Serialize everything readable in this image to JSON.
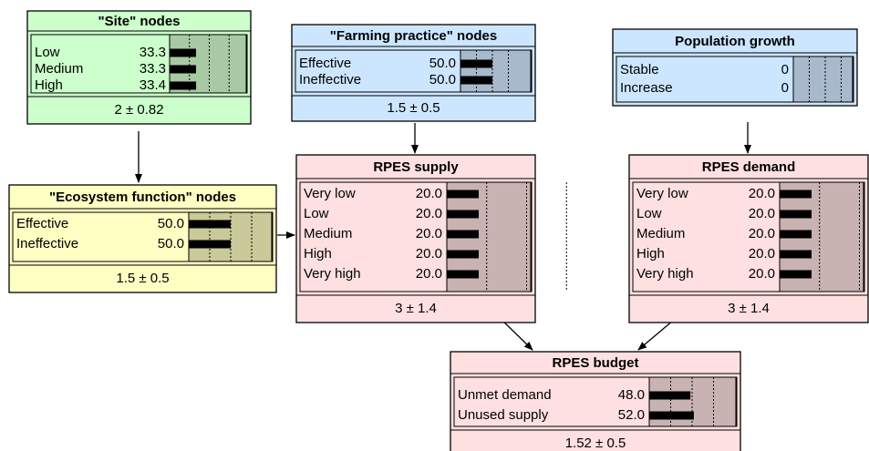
{
  "nodes": [
    {
      "title": "\"Site\" nodes",
      "states": [
        {
          "label": "Low",
          "value": 33.3,
          "value_label": "33.3"
        },
        {
          "label": "Medium",
          "value": 33.3,
          "value_label": "33.3"
        },
        {
          "label": "High",
          "value": 33.4,
          "value_label": "33.4"
        }
      ],
      "summary": "2 ± 0.82"
    },
    {
      "title": "\"Farming practice\" nodes",
      "states": [
        {
          "label": "Effective",
          "value": 50,
          "value_label": "50.0"
        },
        {
          "label": "Ineffective",
          "value": 50,
          "value_label": "50.0"
        }
      ],
      "summary": "1.5 ± 0.5"
    },
    {
      "title": "Population growth",
      "states": [
        {
          "label": "Stable",
          "value": 0,
          "value_label": "0"
        },
        {
          "label": "Increase",
          "value": 0,
          "value_label": "0"
        }
      ]
    },
    {
      "title": "\"Ecosystem function\" nodes",
      "states": [
        {
          "label": "Effective",
          "value": 50,
          "value_label": "50.0"
        },
        {
          "label": "Ineffective",
          "value": 50,
          "value_label": "50.0"
        }
      ],
      "summary": "1.5 ± 0.5"
    },
    {
      "title": "RPES supply",
      "states": [
        {
          "label": "Very low",
          "value": 20,
          "value_label": "20.0"
        },
        {
          "label": "Low",
          "value": 20,
          "value_label": "20.0"
        },
        {
          "label": "Medium",
          "value": 20,
          "value_label": "20.0"
        },
        {
          "label": "High",
          "value": 20,
          "value_label": "20.0"
        },
        {
          "label": "Very high",
          "value": 20,
          "value_label": "20.0"
        }
      ],
      "summary": "3 ± 1.4"
    },
    {
      "title": "RPES demand",
      "states": [
        {
          "label": "Very low",
          "value": 20,
          "value_label": "20.0"
        },
        {
          "label": "Low",
          "value": 20,
          "value_label": "20.0"
        },
        {
          "label": "Medium",
          "value": 20,
          "value_label": "20.0"
        },
        {
          "label": "High",
          "value": 20,
          "value_label": "20.0"
        },
        {
          "label": "Very high",
          "value": 20,
          "value_label": "20.0"
        }
      ],
      "summary": "3 ± 1.4"
    },
    {
      "title": "RPES budget",
      "states": [
        {
          "label": "Unmet demand",
          "value": 48,
          "value_label": "48.0"
        },
        {
          "label": "Unused supply",
          "value": 52,
          "value_label": "52.0"
        }
      ],
      "summary": "1.52 ± 0.5"
    }
  ]
}
